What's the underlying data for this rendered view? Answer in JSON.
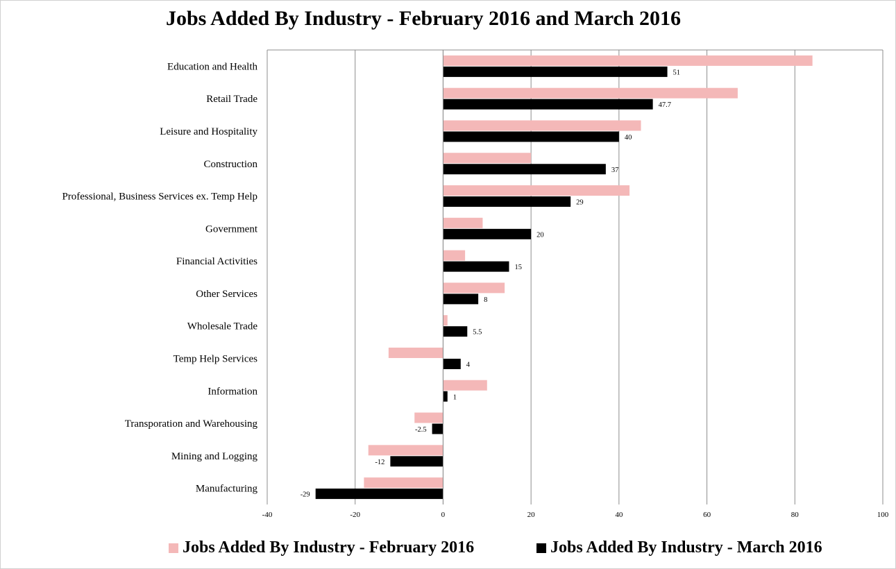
{
  "colors": {
    "february": "#f4b8b8",
    "march": "#000000",
    "grid": "#8c8c8c"
  },
  "chart_data": {
    "type": "bar",
    "orientation": "horizontal",
    "title": "Jobs Added By Industry - February 2016 and March 2016",
    "categories": [
      "Education and Health",
      "Retail Trade",
      "Leisure and Hospitality",
      "Construction",
      "Professional, Business Services ex. Temp Help",
      "Government",
      "Financial Activities",
      "Other Services",
      "Wholesale Trade",
      "Temp Help Services",
      "Information",
      "Transporation and Warehousing",
      "Mining and Logging",
      "Manufacturing"
    ],
    "series": [
      {
        "name": "Jobs Added By Industry - February 2016",
        "values": [
          84,
          67,
          45,
          20,
          42.4,
          9,
          5,
          14,
          1,
          -12.4,
          10,
          -6.5,
          -17,
          -18
        ]
      },
      {
        "name": "Jobs Added By Industry - March 2016",
        "values": [
          51,
          47.7,
          40,
          37,
          29,
          20,
          15,
          8,
          5.5,
          4,
          1,
          -2.5,
          -12,
          -29
        ],
        "data_labels": [
          "51",
          "47.7",
          "40",
          "37",
          "29",
          "20",
          "15",
          "8",
          "5.5",
          "4",
          "1",
          "-2.5",
          "-12",
          "-29"
        ]
      }
    ],
    "xlim": [
      -40,
      100
    ],
    "xticks": [
      "-40",
      "-20",
      "0",
      "20",
      "40",
      "60",
      "80",
      "100"
    ],
    "grid": true,
    "legend": "bottom"
  }
}
